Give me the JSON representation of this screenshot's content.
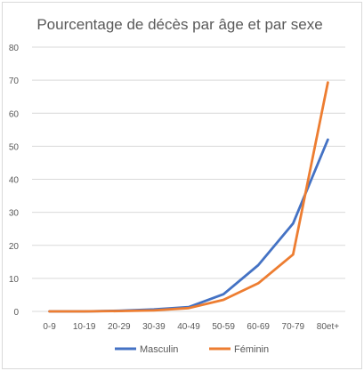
{
  "chart_data": {
    "type": "line",
    "title": "Pourcentage de décès par âge et par sexe",
    "categories": [
      "0-9",
      "10-19",
      "20-29",
      "30-39",
      "40-49",
      "50-59",
      "60-69",
      "70-79",
      "80et+"
    ],
    "series": [
      {
        "name": "Masculin",
        "color": "#4472c4",
        "values": [
          0,
          0,
          0.2,
          0.6,
          1.3,
          5.2,
          14.0,
          26.6,
          52.0
        ]
      },
      {
        "name": "Féminin",
        "color": "#ed7d31",
        "values": [
          0,
          0,
          0.1,
          0.3,
          1.0,
          3.5,
          8.5,
          17.2,
          69.3
        ]
      }
    ],
    "ylim": [
      0,
      80
    ],
    "yticks": [
      0,
      10,
      20,
      30,
      40,
      50,
      60,
      70,
      80
    ],
    "xlabel": "",
    "ylabel": "",
    "grid": true,
    "legend_position": "bottom"
  }
}
